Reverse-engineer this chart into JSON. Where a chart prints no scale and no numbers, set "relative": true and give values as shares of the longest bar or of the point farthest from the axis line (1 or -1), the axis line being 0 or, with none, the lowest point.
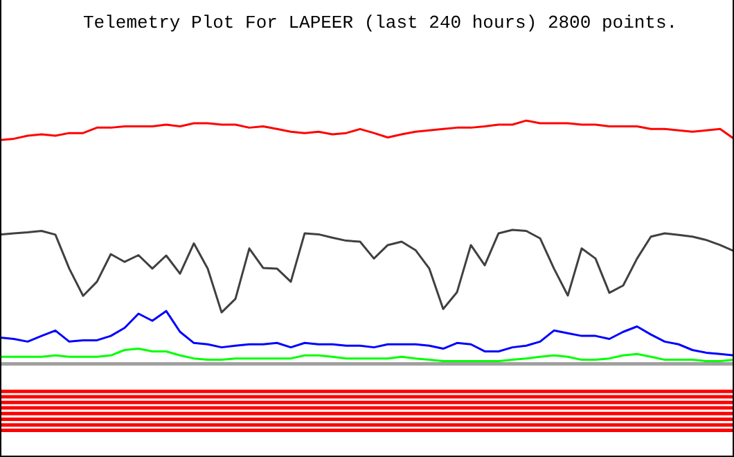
{
  "chart_data": {
    "type": "line",
    "title": "Telemetry Plot For LAPEER (last 240 hours) 2800 points.",
    "relative": true,
    "marker": "none",
    "categories": [
      null,
      null,
      null,
      null,
      null,
      null,
      null,
      null,
      null,
      null,
      null,
      null,
      null,
      null,
      null,
      null,
      null,
      null,
      null,
      null,
      null,
      null,
      null,
      null,
      null,
      null,
      null,
      null,
      null,
      null,
      null,
      null,
      null,
      null,
      null,
      null,
      null,
      null,
      null,
      null,
      null,
      null,
      null,
      null,
      null,
      null,
      null,
      null,
      null,
      null,
      null,
      null,
      null,
      null
    ],
    "series": [
      {
        "color": "#ff0000",
        "values": [
          0.942,
          0.946,
          0.955,
          0.959,
          0.955,
          0.963,
          0.963,
          0.979,
          0.979,
          0.983,
          0.983,
          0.983,
          0.988,
          0.983,
          0.992,
          0.992,
          0.988,
          0.988,
          0.979,
          0.983,
          0.975,
          0.967,
          0.963,
          0.967,
          0.959,
          0.963,
          0.975,
          0.963,
          0.95,
          0.959,
          0.967,
          0.971,
          0.975,
          0.979,
          0.979,
          0.983,
          0.988,
          0.988,
          1,
          0.992,
          0.992,
          0.992,
          0.988,
          0.988,
          0.983,
          0.983,
          0.983,
          0.975,
          0.975,
          0.971,
          0.967,
          0.971,
          0.975,
          0.946
        ]
      },
      {
        "color": "#404040",
        "values": [
          0.661,
          0.665,
          0.668,
          0.672,
          0.661,
          0.56,
          0.479,
          0.521,
          0.603,
          0.58,
          0.6,
          0.56,
          0.599,
          0.545,
          0.635,
          0.56,
          0.43,
          0.47,
          0.62,
          0.562,
          0.56,
          0.521,
          0.665,
          0.662,
          0.652,
          0.643,
          0.64,
          0.59,
          0.63,
          0.64,
          0.615,
          0.56,
          0.44,
          0.49,
          0.63,
          0.57,
          0.665,
          0.675,
          0.672,
          0.65,
          0.56,
          0.48,
          0.62,
          0.59,
          0.488,
          0.51,
          0.59,
          0.655,
          0.665,
          0.66,
          0.655,
          0.645,
          0.63,
          0.612
        ]
      },
      {
        "color": "#0000ff",
        "values": [
          0.355,
          0.351,
          0.343,
          0.36,
          0.376,
          0.343,
          0.347,
          0.347,
          0.36,
          0.384,
          0.426,
          0.405,
          0.434,
          0.372,
          0.339,
          0.335,
          0.326,
          0.331,
          0.335,
          0.335,
          0.339,
          0.326,
          0.339,
          0.335,
          0.335,
          0.331,
          0.331,
          0.326,
          0.335,
          0.335,
          0.335,
          0.331,
          0.322,
          0.339,
          0.335,
          0.314,
          0.314,
          0.326,
          0.331,
          0.343,
          0.376,
          0.368,
          0.36,
          0.36,
          0.351,
          0.372,
          0.388,
          0.364,
          0.343,
          0.335,
          0.318,
          0.31,
          0.306,
          0.302
        ]
      },
      {
        "color": "#00ff00",
        "values": [
          0.298,
          0.298,
          0.298,
          0.298,
          0.302,
          0.298,
          0.298,
          0.298,
          0.302,
          0.318,
          0.322,
          0.314,
          0.314,
          0.302,
          0.293,
          0.289,
          0.289,
          0.293,
          0.293,
          0.293,
          0.293,
          0.293,
          0.302,
          0.302,
          0.298,
          0.293,
          0.293,
          0.293,
          0.293,
          0.298,
          0.293,
          0.289,
          0.285,
          0.285,
          0.285,
          0.285,
          0.285,
          0.289,
          0.293,
          0.298,
          0.302,
          0.298,
          0.289,
          0.289,
          0.293,
          0.302,
          0.306,
          0.298,
          0.289,
          0.289,
          0.289,
          0.285,
          0.285,
          0.289
        ]
      }
    ],
    "ref_lines": [
      {
        "axis": "y",
        "value": 0.277,
        "color": "#a0a0a0"
      },
      {
        "axis": "y",
        "value": 0.195,
        "color": "#ff0000"
      },
      {
        "axis": "y",
        "value": 0.179,
        "color": "#ff0000"
      },
      {
        "axis": "y",
        "value": 0.162,
        "color": "#ff0000"
      },
      {
        "axis": "y",
        "value": 0.146,
        "color": "#ff0000"
      },
      {
        "axis": "y",
        "value": 0.129,
        "color": "#ff0000"
      },
      {
        "axis": "y",
        "value": 0.112,
        "color": "#ff0000"
      },
      {
        "axis": "y",
        "value": 0.095,
        "color": "#ff0000"
      },
      {
        "axis": "y",
        "value": 0.079,
        "color": "#ff0000"
      }
    ]
  }
}
